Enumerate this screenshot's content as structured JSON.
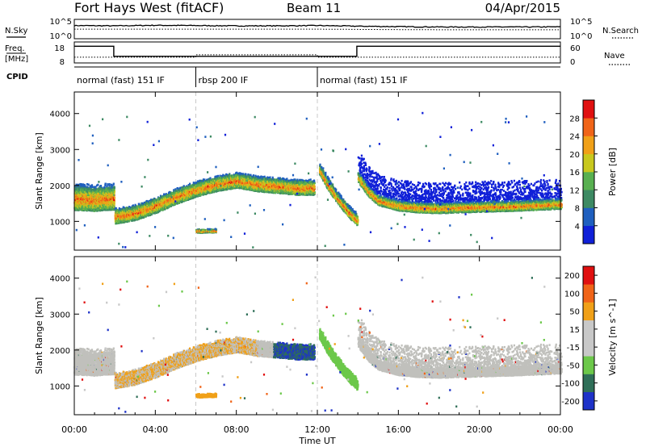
{
  "header": {
    "title": "Fort Hays West (fitACF)",
    "beam": "Beam 11",
    "date": "04/Apr/2015"
  },
  "strip_labels": {
    "nsky": "N.Sky",
    "nsky_top": "10^5",
    "nsky_bottom": "10^0",
    "nsearch": "N.Search",
    "nsearch_top": "10^5",
    "nsearch_bottom": "10^0",
    "freq_line1": "Freq.",
    "freq_line2": "[MHz]",
    "freq_top": "18",
    "freq_bottom": "8",
    "nave": "Nave",
    "nave_top": "60",
    "nave_bottom": "0",
    "cpid": "CPID"
  },
  "cpid_segments": [
    {
      "start_h": 0,
      "end_h": 6,
      "label": "normal (fast) 151 IF"
    },
    {
      "start_h": 6,
      "end_h": 12,
      "label": "rbsp 200 IF"
    },
    {
      "start_h": 12,
      "end_h": 24,
      "label": "normal (fast) 151 IF"
    }
  ],
  "colors": {
    "power_scale": [
      "#1020d8",
      "#1f5fbf",
      "#3d8a63",
      "#58b050",
      "#c8c81e",
      "#f0a018",
      "#f06418",
      "#e01010"
    ],
    "velocity_scale": [
      "#1e32c8",
      "#2f6f58",
      "#6cc84a",
      "#c8c8c8",
      "#c8c8c8",
      "#f0a018",
      "#f06418",
      "#e01010"
    ],
    "ground_scatter": "#c0c0bc"
  },
  "chart_data": [
    {
      "type": "line",
      "title": "N.Sky / N.Search",
      "xlabel": "",
      "ylabel": "N.Sky",
      "x_range_h": [
        0,
        24
      ],
      "y_scale": "log",
      "ylim": [
        1,
        100000
      ],
      "series": [
        {
          "name": "N.Sky",
          "style": "solid",
          "x": [
            0,
            2,
            4,
            6,
            8,
            10,
            12,
            14,
            16,
            18,
            20,
            22,
            24
          ],
          "values": [
            3000,
            2500,
            3500,
            3000,
            2500,
            2500,
            3000,
            2000,
            1500,
            1200,
            1200,
            1200,
            1300
          ]
        },
        {
          "name": "N.Search",
          "style": "dotted",
          "x": [
            0,
            6,
            12,
            14,
            18,
            24
          ],
          "values": [
            300,
            300,
            300,
            250,
            200,
            200
          ]
        }
      ]
    },
    {
      "type": "line",
      "title": "Freq. / Nave",
      "xlabel": "",
      "ylabel": "Freq. [MHz]",
      "x_range_h": [
        0,
        24
      ],
      "ylim": [
        8,
        18
      ],
      "ylim_right": [
        0,
        60
      ],
      "series": [
        {
          "name": "Freq.",
          "style": "solid",
          "x": [
            0,
            1.95,
            1.95,
            13.95,
            13.95,
            24
          ],
          "values": [
            16.5,
            16.5,
            10.8,
            10.8,
            16.5,
            16.5
          ]
        },
        {
          "name": "Nave",
          "style": "dotted",
          "x": [
            0,
            6,
            6,
            12,
            12,
            24
          ],
          "values": [
            14,
            14,
            22,
            22,
            14,
            14
          ]
        }
      ]
    },
    {
      "type": "heatmap",
      "title": "Power",
      "xlabel": "",
      "ylabel": "Slant Range [km]",
      "x_range_h": [
        0,
        24
      ],
      "ylim": [
        200,
        4600
      ],
      "yticks": [
        1000,
        2000,
        3000,
        4000
      ],
      "colorbar": {
        "label": "Power [dB]",
        "ticks": [
          4,
          8,
          12,
          16,
          20,
          24,
          28
        ],
        "range": [
          0,
          32
        ]
      },
      "bands": [
        {
          "name": "early",
          "x": [
            0,
            0.5,
            1,
            1.5,
            1.95
          ],
          "center_km": [
            1650,
            1640,
            1620,
            1650,
            1660
          ],
          "half_width_km": 300
        },
        {
          "name": "dawn-arc",
          "x": [
            2,
            3,
            4,
            5,
            6,
            7,
            8,
            9,
            10,
            11,
            11.8
          ],
          "center_km": [
            1150,
            1250,
            1450,
            1700,
            1900,
            2050,
            2150,
            2050,
            2000,
            1950,
            1950
          ],
          "half_width_km": 180
        },
        {
          "name": "post-noon",
          "x": [
            12.1,
            12.5,
            13,
            13.5,
            13.95
          ],
          "center_km": [
            2450,
            2050,
            1650,
            1300,
            1050
          ],
          "half_width_km": 130
        },
        {
          "name": "afternoon",
          "x": [
            14,
            14.5,
            15,
            16,
            17,
            18,
            20,
            22,
            24
          ],
          "center_km": [
            2250,
            1850,
            1600,
            1450,
            1400,
            1380,
            1420,
            1450,
            1500
          ],
          "half_width_km": 120
        },
        {
          "name": "midday-patch",
          "x": [
            6,
            6.5,
            7
          ],
          "center_km": [
            750,
            760,
            760
          ],
          "half_width_km": 40
        }
      ]
    },
    {
      "type": "heatmap",
      "title": "Velocity",
      "xlabel": "Time UT",
      "ylabel": "Slant Range [km]",
      "x_range_h": [
        0,
        24
      ],
      "xticks": [
        "00:00",
        "04:00",
        "08:00",
        "12:00",
        "16:00",
        "20:00",
        "00:00"
      ],
      "ylim": [
        200,
        4600
      ],
      "yticks": [
        1000,
        2000,
        3000,
        4000
      ],
      "colorbar": {
        "label": "Velocity [m s^-1]",
        "ticks": [
          200,
          100,
          50,
          15,
          -15,
          -50,
          -100,
          -200
        ],
        "range": [
          -250,
          250
        ]
      }
    }
  ]
}
